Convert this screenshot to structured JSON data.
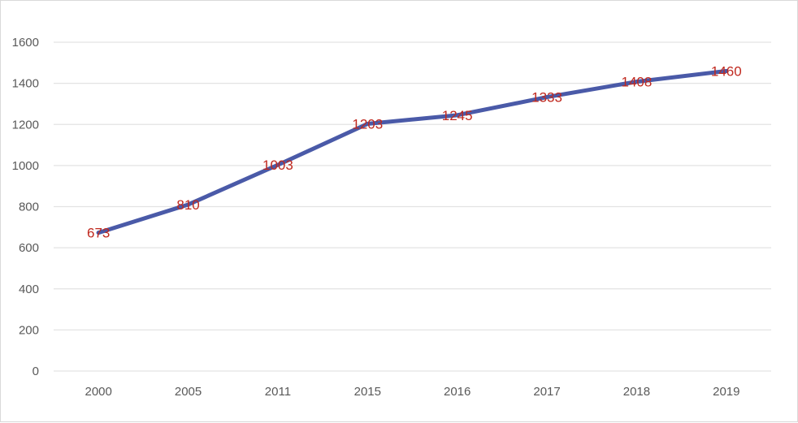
{
  "chart_data": {
    "type": "line",
    "categories": [
      "2000",
      "2005",
      "2011",
      "2015",
      "2016",
      "2017",
      "2018",
      "2019"
    ],
    "series": [
      {
        "values": [
          673,
          810,
          1003,
          1203,
          1245,
          1333,
          1408,
          1460
        ],
        "color": "#4a5aa8"
      }
    ],
    "data_labels": [
      "673",
      "810",
      "1003",
      "1203",
      "1245",
      "1333",
      "1408",
      "1460"
    ],
    "data_label_color": "#c0281e",
    "ylim": [
      0,
      1600
    ],
    "yticks": [
      0,
      200,
      400,
      600,
      800,
      1000,
      1200,
      1400,
      1600
    ],
    "ytick_labels": [
      "0",
      "200",
      "400",
      "600",
      "800",
      "1000",
      "1200",
      "1400",
      "1600"
    ],
    "grid": true,
    "title": "",
    "xlabel": "",
    "ylabel": ""
  }
}
